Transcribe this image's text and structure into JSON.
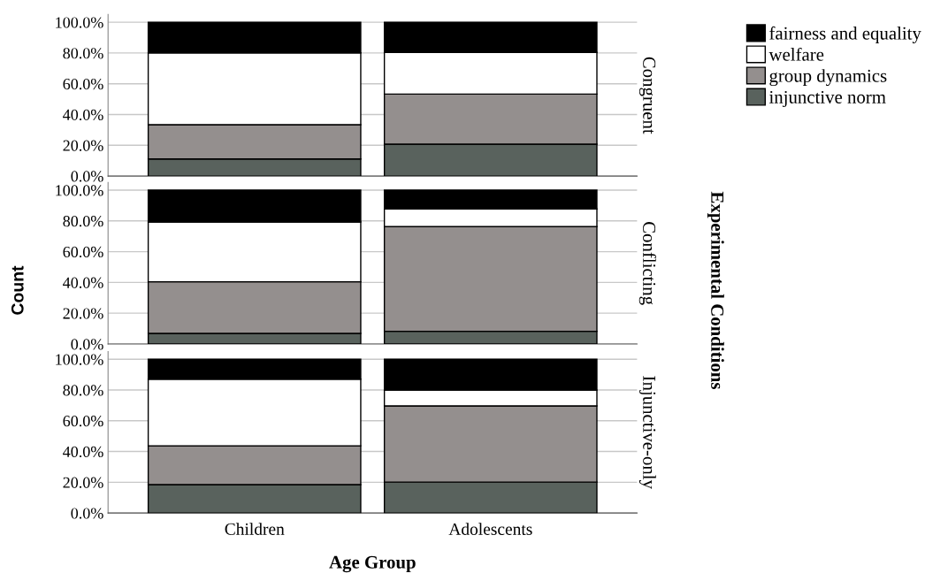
{
  "chart_data": [
    {
      "type": "bar",
      "stacked": true,
      "title": "Congruent",
      "categories": [
        null,
        null
      ],
      "ylim": [
        0,
        105
      ],
      "yticks": [
        {
          "value": 0,
          "label": "0.0%"
        },
        {
          "value": 20,
          "label": "20.0%"
        },
        {
          "value": 40,
          "label": "40.0%"
        },
        {
          "value": 60,
          "label": "60.0%"
        },
        {
          "value": 80,
          "label": "80.0%"
        },
        {
          "value": 100,
          "label": "100.0%"
        }
      ],
      "grid": "y",
      "legend": "right",
      "series": [
        {
          "name": "injunctive norm",
          "color": "#59625d",
          "values": [
            11.1,
            20.7
          ]
        },
        {
          "name": "group dynamics",
          "color": "#948f8e",
          "values": [
            22.3,
            32.6
          ]
        },
        {
          "name": "welfare",
          "color": "#ffffff",
          "values": [
            46.7,
            27.1
          ]
        },
        {
          "name": "fairness and equality",
          "color": "#000000",
          "values": [
            19.9,
            19.6
          ]
        }
      ]
    },
    {
      "type": "bar",
      "stacked": true,
      "title": "Conflicting",
      "ylabel": "Count",
      "y2label": "Experimental Conditions",
      "categories": [
        null,
        null
      ],
      "ylim": [
        0,
        105
      ],
      "yticks": [
        {
          "value": 0,
          "label": "0.0%"
        },
        {
          "value": 20,
          "label": "20.0%"
        },
        {
          "value": 40,
          "label": "40.0%"
        },
        {
          "value": 60,
          "label": "60.0%"
        },
        {
          "value": 80,
          "label": "80.0%"
        },
        {
          "value": 100,
          "label": "100.0%"
        }
      ],
      "grid": "y",
      "series": [
        {
          "color": "#59625d",
          "values": [
            6.9,
            8.2
          ]
        },
        {
          "color": "#948f8e",
          "values": [
            33.5,
            68.1
          ]
        },
        {
          "color": "#ffffff",
          "values": [
            38.9,
            11.5
          ]
        },
        {
          "color": "#000000",
          "values": [
            20.7,
            12.2
          ]
        }
      ]
    },
    {
      "type": "bar",
      "stacked": true,
      "title": "Injunctive-only",
      "xlabel": "Age Group",
      "categories": [
        "Children",
        "Adolescents"
      ],
      "ylim": [
        0,
        105
      ],
      "yticks": [
        {
          "value": 0,
          "label": "0.0%"
        },
        {
          "value": 20,
          "label": "20.0%"
        },
        {
          "value": 40,
          "label": "40.0%"
        },
        {
          "value": 60,
          "label": "60.0%"
        },
        {
          "value": 80,
          "label": "80.0%"
        },
        {
          "value": 100,
          "label": "100.0%"
        }
      ],
      "grid": "y",
      "series": [
        {
          "color": "#59625d",
          "values": [
            18.5,
            20.1
          ]
        },
        {
          "color": "#948f8e",
          "values": [
            25.2,
            49.5
          ]
        },
        {
          "color": "#ffffff",
          "values": [
            43.3,
            10.3
          ]
        },
        {
          "color": "#000000",
          "values": [
            13.0,
            20.1
          ]
        }
      ]
    }
  ]
}
